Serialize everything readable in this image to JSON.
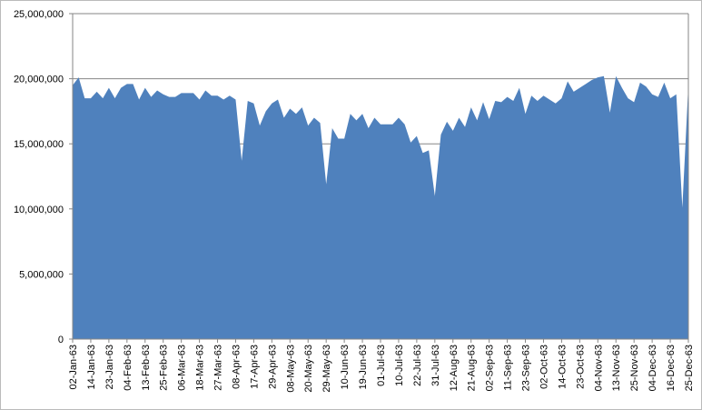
{
  "chart_data": {
    "type": "area",
    "color": "#4f81bd",
    "grid": true,
    "categories": [
      "02-Jan-63",
      null,
      null,
      "14-Jan-63",
      null,
      null,
      "23-Jan-63",
      null,
      null,
      "04-Feb-63",
      null,
      null,
      "13-Feb-63",
      null,
      null,
      "25-Feb-63",
      null,
      null,
      "06-Mar-63",
      null,
      null,
      "18-Mar-63",
      null,
      null,
      "27-Mar-63",
      null,
      null,
      "08-Apr-63",
      null,
      null,
      "17-Apr-63",
      null,
      null,
      "29-Apr-63",
      null,
      null,
      "08-May-63",
      null,
      null,
      "20-May-63",
      null,
      null,
      "29-May-63",
      null,
      null,
      "10-Jun-63",
      null,
      null,
      "19-Jun-63",
      null,
      null,
      "01-Jul-63",
      null,
      null,
      "10-Jul-63",
      null,
      null,
      "22-Jul-63",
      null,
      null,
      "31-Jul-63",
      null,
      null,
      "12-Aug-63",
      null,
      null,
      "21-Aug-63",
      null,
      null,
      "02-Sep-63",
      null,
      null,
      "11-Sep-63",
      null,
      null,
      "23-Sep-63",
      null,
      null,
      "02-Oct-63",
      null,
      null,
      "14-Oct-63",
      null,
      null,
      "23-Oct-63",
      null,
      null,
      "04-Nov-63",
      null,
      null,
      "13-Nov-63",
      null,
      null,
      "25-Nov-63",
      null,
      null,
      "04-Dec-63",
      null,
      null,
      "16-Dec-63",
      null,
      null,
      "25-Dec-63"
    ],
    "values": [
      19500000,
      20100000,
      18500000,
      18500000,
      19000000,
      18500000,
      19300000,
      18500000,
      19300000,
      19600000,
      19600000,
      18400000,
      19300000,
      18600000,
      19100000,
      18800000,
      18600000,
      18600000,
      18900000,
      18900000,
      18900000,
      18400000,
      19100000,
      18700000,
      18700000,
      18400000,
      18700000,
      18400000,
      13700000,
      18300000,
      18100000,
      16400000,
      17500000,
      18100000,
      18400000,
      17000000,
      17700000,
      17300000,
      17800000,
      16400000,
      17000000,
      16600000,
      11900000,
      16200000,
      15400000,
      15400000,
      17300000,
      16800000,
      17300000,
      16200000,
      17000000,
      16500000,
      16500000,
      16500000,
      17000000,
      16500000,
      15100000,
      15600000,
      14300000,
      14500000,
      11000000,
      15700000,
      16700000,
      16000000,
      17000000,
      16300000,
      17800000,
      16800000,
      18200000,
      16900000,
      18300000,
      18200000,
      18600000,
      18300000,
      19300000,
      17300000,
      18700000,
      18300000,
      18700000,
      18400000,
      18100000,
      18500000,
      19800000,
      19000000,
      19300000,
      19600000,
      19900000,
      20100000,
      20200000,
      17400000,
      20200000,
      19300000,
      18500000,
      18200000,
      19700000,
      19400000,
      18800000,
      18600000,
      19700000,
      18500000,
      18800000,
      10100000,
      19500000
    ],
    "ylim": [
      0,
      25000000
    ],
    "yticks": [
      0,
      {
        "value": 5000000,
        "label": "5,000,000"
      },
      {
        "value": 10000000,
        "label": "10,000,000"
      },
      {
        "value": 15000000,
        "label": "15,000,000"
      },
      {
        "value": 20000000,
        "label": "20,000,000"
      },
      {
        "value": 25000000,
        "label": "25,000,000"
      }
    ]
  }
}
